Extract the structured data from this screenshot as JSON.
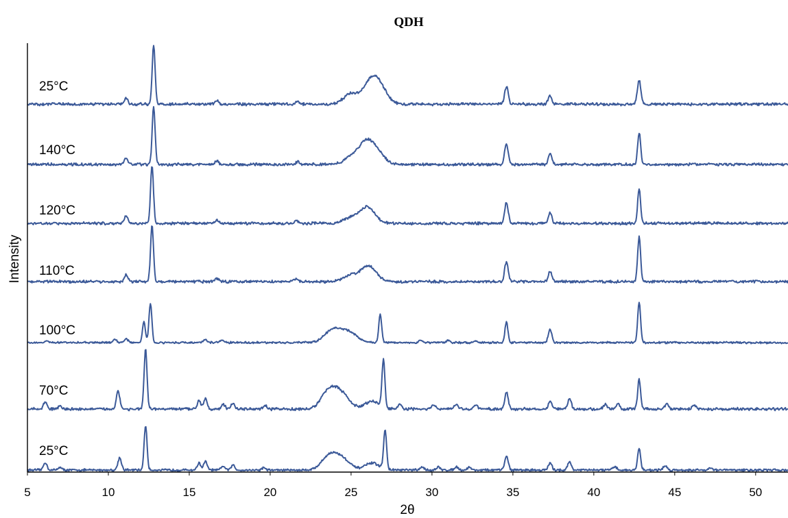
{
  "chart_data": {
    "type": "line",
    "title": "QDH",
    "xlabel": "2θ",
    "ylabel": "Intensity",
    "xlim": [
      5,
      52
    ],
    "xticks": [
      5,
      10,
      15,
      20,
      25,
      30,
      35,
      40,
      45,
      50
    ],
    "grid": false,
    "legend": "inline labels at left of each trace",
    "color": "#3b5998",
    "series": [
      {
        "name": "25°C",
        "peaks": [
          [
            6.1,
            0.15
          ],
          [
            7.0,
            0.06
          ],
          [
            10.7,
            0.25
          ],
          [
            12.3,
            0.9
          ],
          [
            15.6,
            0.14
          ],
          [
            16.0,
            0.17
          ],
          [
            17.1,
            0.08
          ],
          [
            17.7,
            0.1
          ],
          [
            19.6,
            0.05
          ],
          [
            23.6,
            0.25
          ],
          [
            24.2,
            0.15
          ],
          [
            24.6,
            0.12
          ],
          [
            26.3,
            0.14
          ],
          [
            27.1,
            0.8
          ],
          [
            29.4,
            0.06
          ],
          [
            30.4,
            0.06
          ],
          [
            31.5,
            0.07
          ],
          [
            32.3,
            0.06
          ],
          [
            34.6,
            0.28
          ],
          [
            37.3,
            0.14
          ],
          [
            38.5,
            0.17
          ],
          [
            41.3,
            0.07
          ],
          [
            42.8,
            0.45
          ],
          [
            44.4,
            0.09
          ],
          [
            47.2,
            0.05
          ]
        ]
      },
      {
        "name": "70°C",
        "peaks": [
          [
            6.1,
            0.12
          ],
          [
            7.0,
            0.05
          ],
          [
            10.6,
            0.3
          ],
          [
            12.3,
            1.0
          ],
          [
            15.6,
            0.15
          ],
          [
            16.0,
            0.18
          ],
          [
            17.1,
            0.08
          ],
          [
            17.7,
            0.1
          ],
          [
            19.7,
            0.05
          ],
          [
            23.6,
            0.28
          ],
          [
            24.2,
            0.16
          ],
          [
            24.6,
            0.12
          ],
          [
            26.3,
            0.13
          ],
          [
            27.0,
            0.8
          ],
          [
            28.0,
            0.08
          ],
          [
            30.1,
            0.07
          ],
          [
            31.5,
            0.08
          ],
          [
            32.7,
            0.07
          ],
          [
            34.6,
            0.28
          ],
          [
            37.3,
            0.14
          ],
          [
            38.5,
            0.17
          ],
          [
            40.7,
            0.08
          ],
          [
            41.5,
            0.09
          ],
          [
            42.8,
            0.5
          ],
          [
            44.5,
            0.09
          ],
          [
            46.2,
            0.07
          ]
        ]
      },
      {
        "name": "100°C",
        "peaks": [
          [
            6.2,
            0.05
          ],
          [
            10.4,
            0.08
          ],
          [
            11.1,
            0.1
          ],
          [
            12.2,
            0.5
          ],
          [
            12.6,
            0.95
          ],
          [
            16.0,
            0.07
          ],
          [
            17.0,
            0.07
          ],
          [
            23.7,
            0.22
          ],
          [
            24.3,
            0.2
          ],
          [
            25.0,
            0.2
          ],
          [
            26.8,
            0.7
          ],
          [
            29.3,
            0.06
          ],
          [
            31.0,
            0.06
          ],
          [
            32.7,
            0.05
          ],
          [
            34.6,
            0.5
          ],
          [
            37.3,
            0.32
          ],
          [
            42.8,
            0.98
          ]
        ]
      },
      {
        "name": "110°C",
        "peaks": [
          [
            11.1,
            0.12
          ],
          [
            12.7,
            1.0
          ],
          [
            16.7,
            0.06
          ],
          [
            21.6,
            0.05
          ],
          [
            25.0,
            0.12
          ],
          [
            26.1,
            0.28
          ],
          [
            34.6,
            0.35
          ],
          [
            37.3,
            0.18
          ],
          [
            42.8,
            0.8
          ]
        ]
      },
      {
        "name": "120°C",
        "peaks": [
          [
            11.1,
            0.12
          ],
          [
            12.7,
            1.0
          ],
          [
            16.7,
            0.06
          ],
          [
            21.6,
            0.05
          ],
          [
            25.0,
            0.1
          ],
          [
            26.0,
            0.28
          ],
          [
            34.6,
            0.35
          ],
          [
            37.3,
            0.18
          ],
          [
            42.8,
            0.6
          ]
        ]
      },
      {
        "name": "140°C",
        "peaks": [
          [
            11.1,
            0.1
          ],
          [
            12.8,
            1.0
          ],
          [
            16.7,
            0.06
          ],
          [
            21.7,
            0.05
          ],
          [
            25.0,
            0.12
          ],
          [
            25.9,
            0.35
          ],
          [
            26.6,
            0.2
          ],
          [
            34.6,
            0.35
          ],
          [
            37.3,
            0.18
          ],
          [
            42.8,
            0.55
          ]
        ]
      },
      {
        "name": "25°C",
        "peaks": [
          [
            11.1,
            0.1
          ],
          [
            12.8,
            1.0
          ],
          [
            16.7,
            0.06
          ],
          [
            21.7,
            0.05
          ],
          [
            25.0,
            0.18
          ],
          [
            26.2,
            0.35
          ],
          [
            26.8,
            0.25
          ],
          [
            34.6,
            0.3
          ],
          [
            37.3,
            0.15
          ],
          [
            42.8,
            0.4
          ]
        ]
      }
    ]
  }
}
